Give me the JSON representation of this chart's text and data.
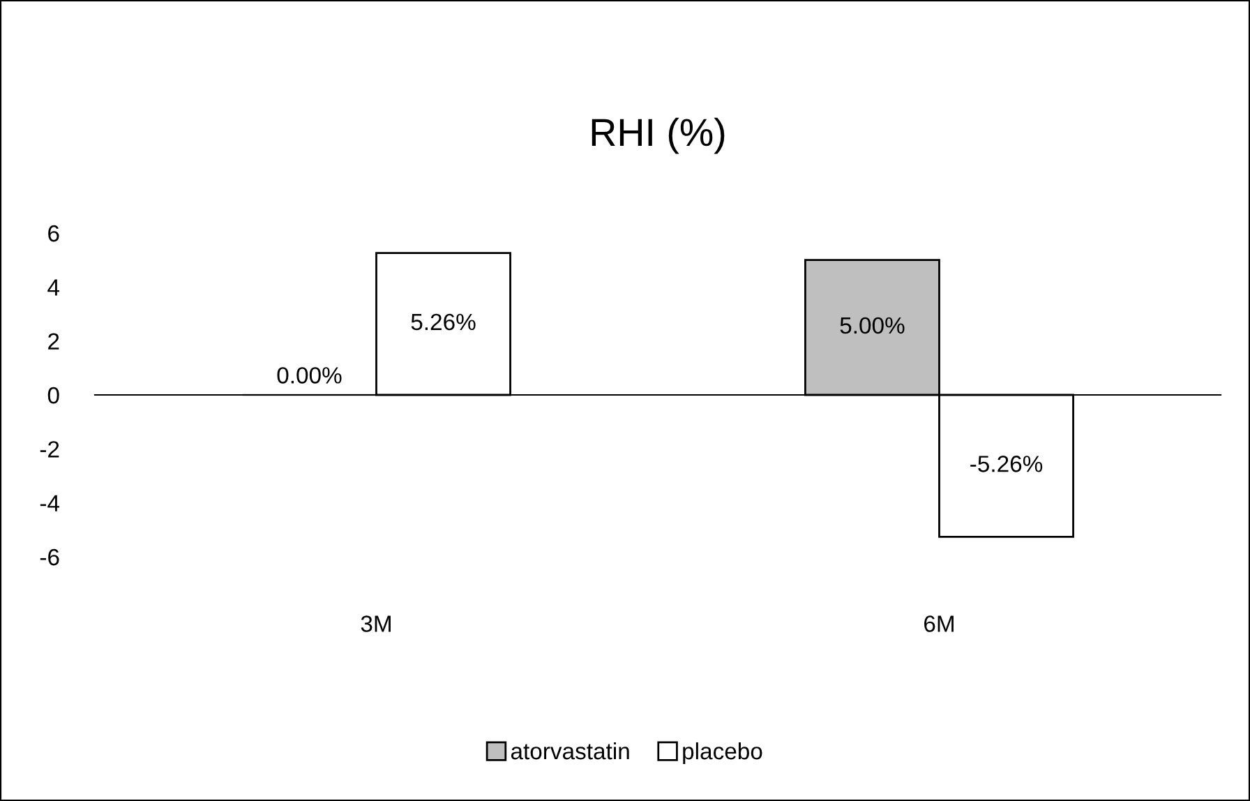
{
  "chart_data": {
    "type": "bar",
    "title": "RHI (%)",
    "categories": [
      "3M",
      "6M"
    ],
    "series": [
      {
        "name": "atorvastatin",
        "color": "#bfbfbf",
        "values": [
          0,
          5.0
        ],
        "value_labels": [
          "0.00%",
          "5.00%"
        ]
      },
      {
        "name": "placebo",
        "color": "#ffffff",
        "values": [
          5.26,
          -5.26
        ],
        "value_labels": [
          "5.26%",
          "-5.26%"
        ]
      }
    ],
    "ylim": [
      -6,
      6
    ],
    "yticks": [
      -6,
      -4,
      -2,
      0,
      2,
      4,
      6
    ],
    "legend": "bottom"
  }
}
